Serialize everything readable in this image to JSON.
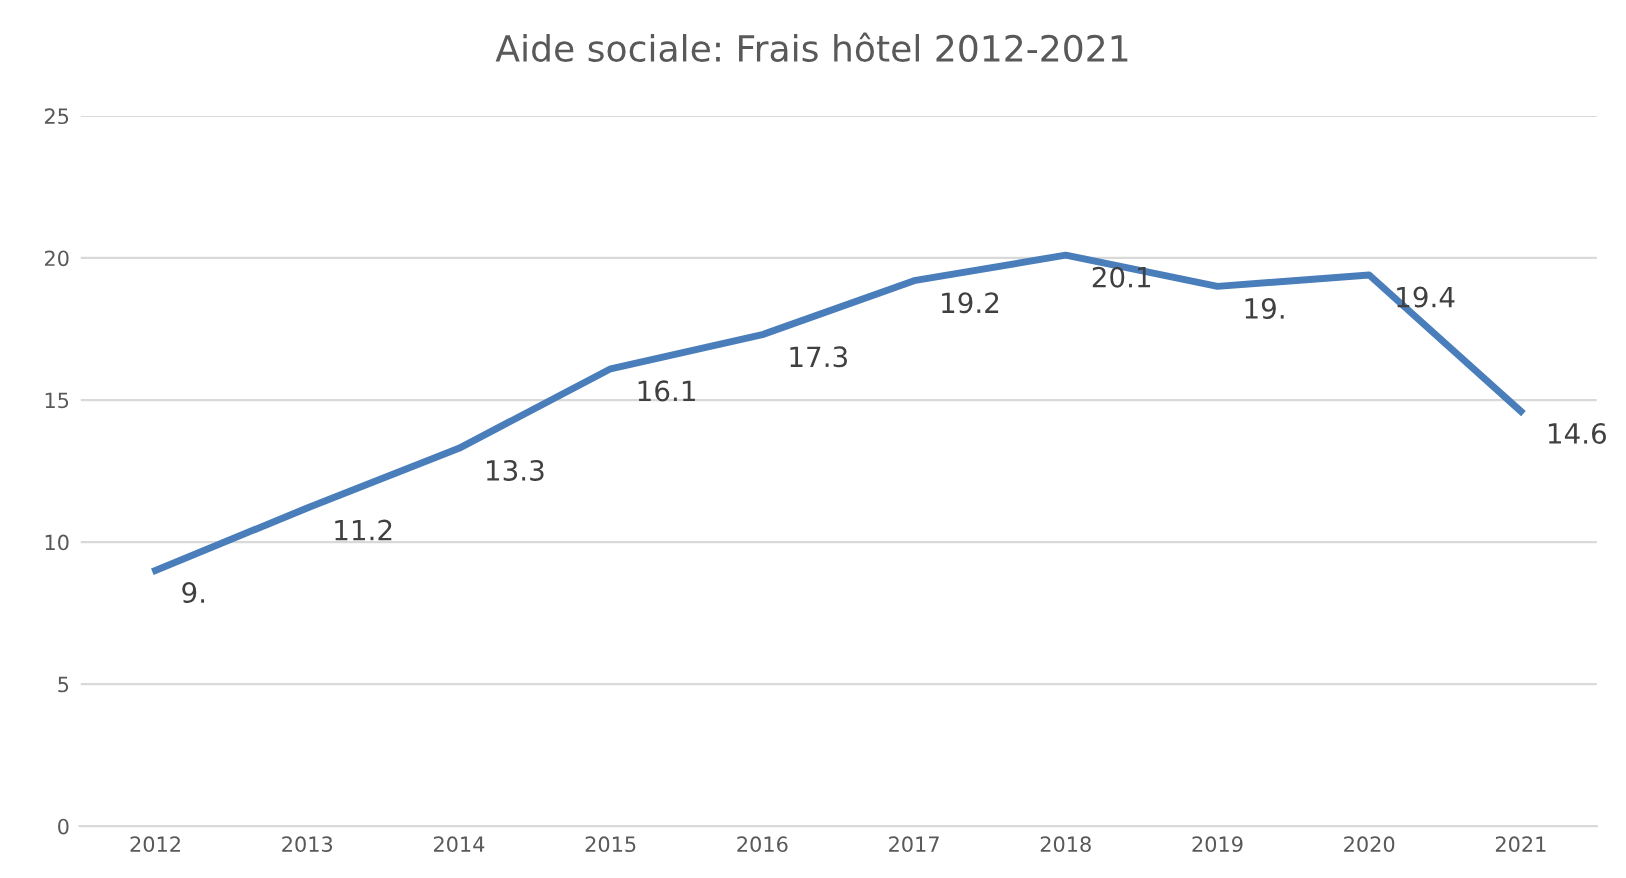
{
  "chart_data": {
    "type": "line",
    "title": "Aide sociale: Frais hôtel 2012-2021",
    "categories": [
      "2012",
      "2013",
      "2014",
      "2015",
      "2016",
      "2017",
      "2018",
      "2019",
      "2020",
      "2021"
    ],
    "series": [
      {
        "color": "#4a7ebb",
        "values": [
          9,
          11.2,
          13.3,
          16.1,
          17.3,
          19.2,
          20.1,
          19,
          19.4,
          14.6
        ],
        "value_labels": [
          "9.",
          "11.2",
          "13.3",
          "16.1",
          "17.3",
          "19.2",
          "20.1",
          "19.",
          "19.4",
          "14.6"
        ]
      }
    ],
    "ylim": [
      0,
      25
    ],
    "yticks": [
      0,
      5,
      10,
      15,
      20,
      25
    ],
    "grid": "y",
    "marker": "none",
    "line_style": "solid"
  }
}
